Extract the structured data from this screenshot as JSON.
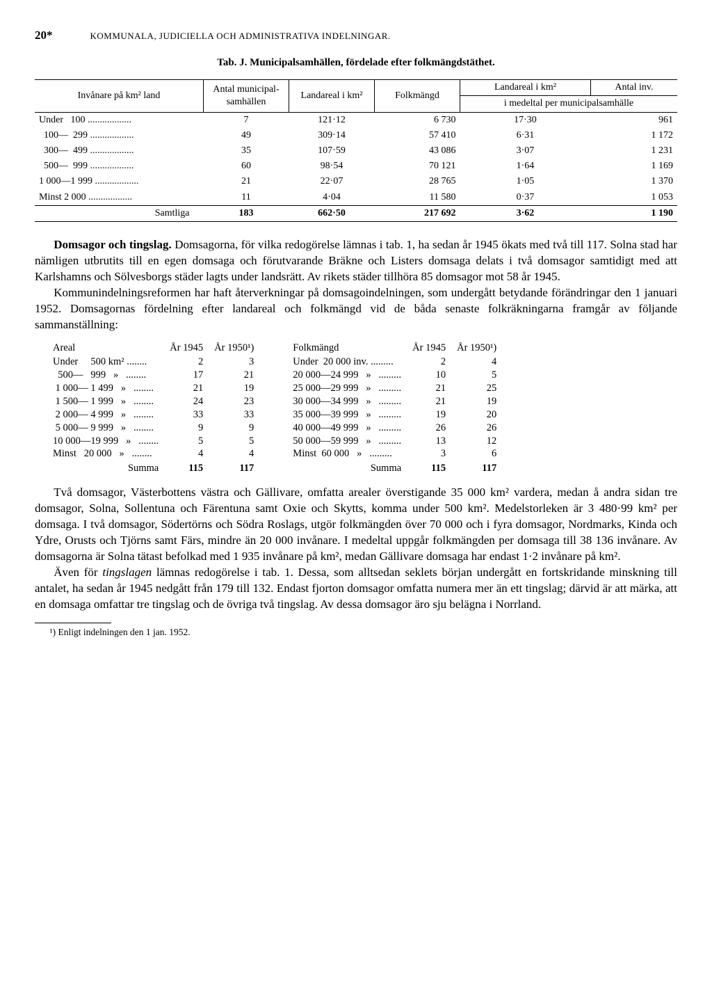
{
  "page_number": "20*",
  "doc_header": "KOMMUNALA, JUDICIELLA OCH ADMINISTRATIVA INDELNINGAR.",
  "table_j": {
    "title_prefix": "Tab. J.",
    "title": "Municipalsamhällen, fördelade efter folkmängdstäthet.",
    "col_headers": {
      "c1": "Invånare på km² land",
      "c2": "Antal municipal-samhällen",
      "c3": "Landareal i km²",
      "c4": "Folkmängd",
      "c5a": "Landareal i km²",
      "c5b": "Antal inv.",
      "c5sub": "i medeltal per municipalsamhälle"
    },
    "rows": [
      {
        "label": "Under   100 ..................",
        "n": "7",
        "area": "121·12",
        "pop": "6 730",
        "avg_area": "17·30",
        "avg_inv": "961"
      },
      {
        "label": "  100—  299 ..................",
        "n": "49",
        "area": "309·14",
        "pop": "57 410",
        "avg_area": "6·31",
        "avg_inv": "1 172"
      },
      {
        "label": "  300—  499 ..................",
        "n": "35",
        "area": "107·59",
        "pop": "43 086",
        "avg_area": "3·07",
        "avg_inv": "1 231"
      },
      {
        "label": "  500—  999 ..................",
        "n": "60",
        "area": "98·54",
        "pop": "70 121",
        "avg_area": "1·64",
        "avg_inv": "1 169"
      },
      {
        "label": "1 000—1 999 ..................",
        "n": "21",
        "area": "22·07",
        "pop": "28 765",
        "avg_area": "1·05",
        "avg_inv": "1 370"
      },
      {
        "label": "Minst 2 000 ..................",
        "n": "11",
        "area": "4·04",
        "pop": "11 580",
        "avg_area": "0·37",
        "avg_inv": "1 053"
      }
    ],
    "sum": {
      "label": "Samtliga",
      "n": "183",
      "area": "662·50",
      "pop": "217 692",
      "avg_area": "3·62",
      "avg_inv": "1 190"
    }
  },
  "para1": "Domsagor och tingslag. Domsagorna, för vilka redogörelse lämnas i tab. 1, ha sedan år 1945 ökats med två till 117. Solna stad har nämligen utbrutits till en egen domsaga och förutvarande Bräkne och Listers domsaga delats i två domsagor samtidigt med att Karlshamns och Sölvesborgs städer lagts under landsrätt. Av rikets städer tillhöra 85 domsagor mot 58 år 1945.",
  "para2": "Kommunindelningsreformen har haft återverkningar på domsagoindelningen, som undergått betydande förändringar den 1 januari 1952. Domsagornas fördelning efter landareal och folkmängd vid de båda senaste folkräkningarna framgår av följande sammanställning:",
  "areal_table": {
    "head": {
      "c1": "Areal",
      "c2": "År 1945",
      "c3": "År 1950¹)"
    },
    "rows": [
      {
        "lbl": "Under     500 km² ........",
        "a": "2",
        "b": "3"
      },
      {
        "lbl": "  500—   999   »   ........",
        "a": "17",
        "b": "21"
      },
      {
        "lbl": " 1 000— 1 499   »   ........",
        "a": "21",
        "b": "19"
      },
      {
        "lbl": " 1 500— 1 999   »   ........",
        "a": "24",
        "b": "23"
      },
      {
        "lbl": " 2 000— 4 999   »   ........",
        "a": "33",
        "b": "33"
      },
      {
        "lbl": " 5 000— 9 999   »   ........",
        "a": "9",
        "b": "9"
      },
      {
        "lbl": "10 000—19 999   »   ........",
        "a": "5",
        "b": "5"
      },
      {
        "lbl": "Minst   20 000   »   ........",
        "a": "4",
        "b": "4"
      }
    ],
    "sum": {
      "lbl": "Summa",
      "a": "115",
      "b": "117"
    }
  },
  "folk_table": {
    "head": {
      "c1": "Folkmängd",
      "c2": "År 1945",
      "c3": "År 1950¹)"
    },
    "rows": [
      {
        "lbl": "Under  20 000 inv. .........",
        "a": "2",
        "b": "4"
      },
      {
        "lbl": "20 000—24 999   »   .........",
        "a": "10",
        "b": "5"
      },
      {
        "lbl": "25 000—29 999   »   .........",
        "a": "21",
        "b": "25"
      },
      {
        "lbl": "30 000—34 999   »   .........",
        "a": "21",
        "b": "19"
      },
      {
        "lbl": "35 000—39 999   »   .........",
        "a": "19",
        "b": "20"
      },
      {
        "lbl": "40 000—49 999   »   .........",
        "a": "26",
        "b": "26"
      },
      {
        "lbl": "50 000—59 999   »   .........",
        "a": "13",
        "b": "12"
      },
      {
        "lbl": "Minst  60 000   »   .........",
        "a": "3",
        "b": "6"
      }
    ],
    "sum": {
      "lbl": "Summa",
      "a": "115",
      "b": "117"
    }
  },
  "para3": "Två domsagor, Västerbottens västra och Gällivare, omfatta arealer överstigande 35 000 km² vardera, medan å andra sidan tre domsagor, Solna, Sollentuna och Färentuna samt Oxie och Skytts, komma under 500 km². Medelstorleken är 3 480·99 km² per domsaga. I två domsagor, Södertörns och Södra Roslags, utgör folkmängden över 70 000 och i fyra domsagor, Nordmarks, Kinda och Ydre, Orusts och Tjörns samt Färs, mindre än 20 000 invånare. I medeltal uppgår folkmängden per domsaga till 38 136 invånare. Av domsagorna är Solna tätast befolkad med 1 935 invånare på km², medan Gällivare domsaga har endast 1·2 invånare på km².",
  "para4_lead": "Även för ",
  "para4_em": "tingslagen",
  "para4_rest": " lämnas redogörelse i tab. 1. Dessa, som alltsedan seklets början undergått en fortskridande minskning till antalet, ha sedan år 1945 nedgått från 179 till 132. Endast fjorton domsagor omfatta numera mer än ett tingslag; därvid är att märka, att en domsaga omfattar tre tingslag och de övriga två tingslag. Av dessa domsagor äro sju belägna i Norrland.",
  "footnote": "¹) Enligt indelningen den 1 jan. 1952."
}
